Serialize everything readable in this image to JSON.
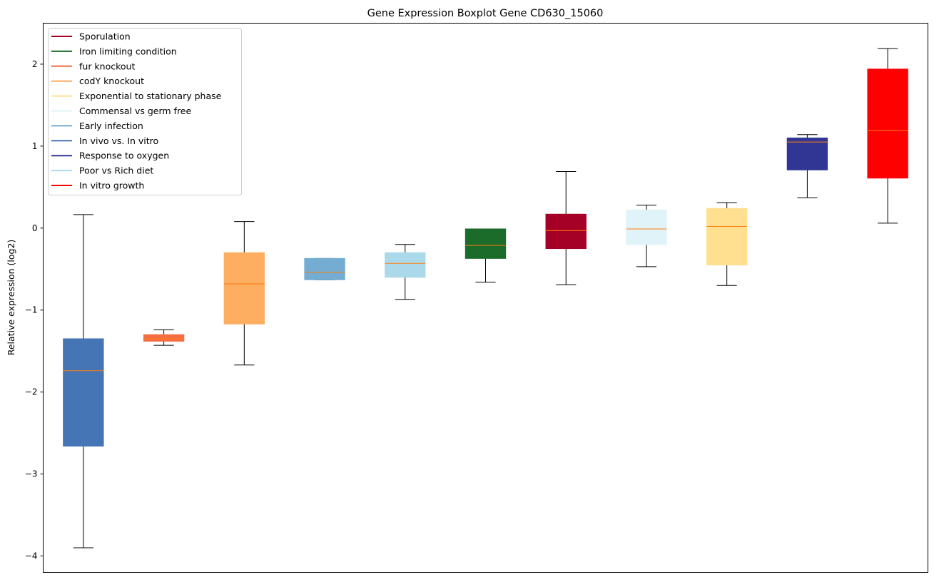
{
  "chart_data": {
    "type": "box",
    "title": "Gene Expression Boxplot Gene CD630_15060",
    "xlabel": "",
    "ylabel": "Relative expression (log2)",
    "ylim": [
      -4.2,
      2.5
    ],
    "yticks": [
      -4,
      -3,
      -2,
      -1,
      0,
      1,
      2
    ],
    "ytick_labels": [
      "−4",
      "−3",
      "−2",
      "−1",
      "0",
      "1",
      "2"
    ],
    "grid": false,
    "legend_position": "top-left",
    "median_color": "#ff7f0e",
    "series": [
      {
        "name": "In vivo vs. In vitro",
        "color": "#4575b4",
        "whisker_low": -3.9,
        "q1": -2.66,
        "median": -1.74,
        "q3": -1.35,
        "whisker_high": 0.165
      },
      {
        "name": "fur knockout",
        "color": "#f46d43",
        "whisker_low": -1.43,
        "q1": -1.38,
        "median": -1.35,
        "q3": -1.3,
        "whisker_high": -1.24
      },
      {
        "name": "codY knockout",
        "color": "#fdae61",
        "whisker_low": -1.67,
        "q1": -1.17,
        "median": -0.68,
        "q3": -0.3,
        "whisker_high": 0.08
      },
      {
        "name": "Early infection",
        "color": "#74add1",
        "whisker_low": -0.63,
        "q1": -0.63,
        "median": -0.54,
        "q3": -0.37,
        "whisker_high": -0.37
      },
      {
        "name": "Poor vs Rich diet",
        "color": "#abd9e9",
        "whisker_low": -0.87,
        "q1": -0.6,
        "median": -0.43,
        "q3": -0.3,
        "whisker_high": -0.2
      },
      {
        "name": "Iron limiting condition",
        "color": "#1b6b2b",
        "whisker_low": -0.66,
        "q1": -0.37,
        "median": -0.21,
        "q3": -0.01,
        "whisker_high": -0.01
      },
      {
        "name": "Sporulation",
        "color": "#a50026",
        "whisker_low": -0.69,
        "q1": -0.25,
        "median": -0.03,
        "q3": 0.17,
        "whisker_high": 0.69
      },
      {
        "name": "Commensal vs germ free",
        "color": "#e0f3f8",
        "whisker_low": -0.47,
        "q1": -0.2,
        "median": -0.01,
        "q3": 0.22,
        "whisker_high": 0.28
      },
      {
        "name": "Exponential to stationary phase",
        "color": "#fee090",
        "whisker_low": -0.7,
        "q1": -0.45,
        "median": 0.02,
        "q3": 0.24,
        "whisker_high": 0.31
      },
      {
        "name": "Response to oxygen",
        "color": "#313695",
        "whisker_low": 0.37,
        "q1": 0.71,
        "median": 1.05,
        "q3": 1.1,
        "whisker_high": 1.14
      },
      {
        "name": "In vitro growth",
        "color": "#ff0000",
        "whisker_low": 0.06,
        "q1": 0.61,
        "median": 1.19,
        "q3": 1.94,
        "whisker_high": 2.19
      }
    ],
    "legend": [
      {
        "label": "Sporulation",
        "color": "#a50026"
      },
      {
        "label": "Iron limiting condition",
        "color": "#1b6b2b"
      },
      {
        "label": "fur knockout",
        "color": "#f46d43"
      },
      {
        "label": "codY knockout",
        "color": "#fdae61"
      },
      {
        "label": "Exponential to stationary phase",
        "color": "#fee090"
      },
      {
        "label": "Commensal vs germ free",
        "color": "#e0f3f8"
      },
      {
        "label": "Early infection",
        "color": "#74add1"
      },
      {
        "label": "In vivo vs. In vitro",
        "color": "#4575b4"
      },
      {
        "label": "Response to oxygen",
        "color": "#313695"
      },
      {
        "label": "Poor vs Rich diet",
        "color": "#abd9e9"
      },
      {
        "label": "In vitro growth",
        "color": "#ff0000"
      }
    ]
  }
}
